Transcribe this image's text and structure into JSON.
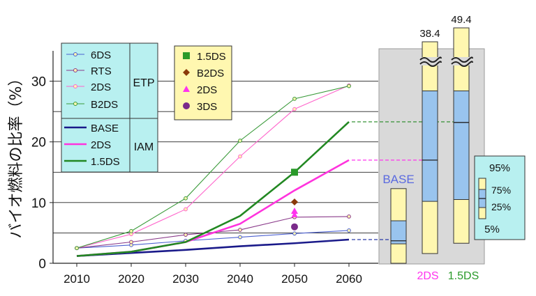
{
  "chart_data": {
    "type": "line",
    "ylabel": "バイオ燃料の比率（%）",
    "x": [
      2010,
      2020,
      2030,
      2040,
      2050,
      2060
    ],
    "ylim": [
      0,
      35
    ],
    "yticks": [
      0,
      10,
      20,
      30
    ],
    "grid": true,
    "series": [
      {
        "name": "6DS",
        "group": "ETP",
        "marker": "circle",
        "color": "#4a5fd0",
        "values": [
          2.5,
          3.0,
          3.7,
          4.3,
          4.9,
          5.4
        ]
      },
      {
        "name": "RTS",
        "group": "ETP",
        "marker": "circle",
        "color": "#8a3a8a",
        "values": [
          2.5,
          3.5,
          4.7,
          5.5,
          7.6,
          7.7
        ]
      },
      {
        "name": "2DS",
        "group": "ETP",
        "marker": "circle",
        "color": "#ff66cc",
        "values": [
          2.5,
          4.8,
          8.9,
          17.6,
          25.4,
          29.3
        ]
      },
      {
        "name": "B2DS",
        "group": "ETP",
        "marker": "circle",
        "color": "#3a9a3a",
        "values": [
          2.5,
          5.3,
          10.7,
          20.2,
          27.1,
          29.2
        ]
      },
      {
        "name": "BASE",
        "group": "IAM",
        "marker": "none",
        "color": "#1a1a8a",
        "values": [
          1.2,
          1.7,
          2.2,
          2.8,
          3.3,
          3.9
        ]
      },
      {
        "name": "2DS",
        "group": "IAM",
        "marker": "none",
        "color": "#ff33dd",
        "values": [
          1.2,
          1.9,
          3.5,
          6.5,
          12.0,
          17.0
        ]
      },
      {
        "name": "1.5DS",
        "group": "IAM",
        "marker": "none",
        "color": "#228822",
        "values": [
          1.2,
          1.9,
          3.5,
          7.8,
          15.0,
          23.3
        ]
      }
    ],
    "points_2050": [
      {
        "name": "1.5DS",
        "marker": "square",
        "color": "#2a9a2a",
        "value": 15.0
      },
      {
        "name": "B2DS",
        "marker": "diamond",
        "color": "#8b3a0a",
        "value": 10.1
      },
      {
        "name": "2DS",
        "marker": "triangle",
        "color": "#ff33ee",
        "value": 8.6
      },
      {
        "name": "3DS",
        "marker": "circle",
        "color": "#7a2a8a",
        "value": 6.0
      }
    ],
    "groups": [
      "ETP",
      "IAM"
    ],
    "boxplots": [
      {
        "name": "BASE",
        "label_color": "#5a6ae0",
        "p5": 0,
        "p25": 3.2,
        "median": 3.7,
        "p75": 7.0,
        "p95": 12.3
      },
      {
        "name": "2DS",
        "label_color": "#ff33ee",
        "p5": 1.6,
        "p25": 10.2,
        "median": 17.0,
        "p75": 28.4,
        "p95": 38.4
      },
      {
        "name": "1.5DS",
        "label_color": "#2a9a2a",
        "p5": 3.3,
        "p25": 10.5,
        "median": 23.2,
        "p75": 28.4,
        "p95": 49.4
      }
    ],
    "top_labels": [
      "38.4",
      "49.4"
    ],
    "percentile_legend": {
      "p95": "95%",
      "p75": "75%",
      "p25": "25%",
      "p5": "5%"
    }
  }
}
